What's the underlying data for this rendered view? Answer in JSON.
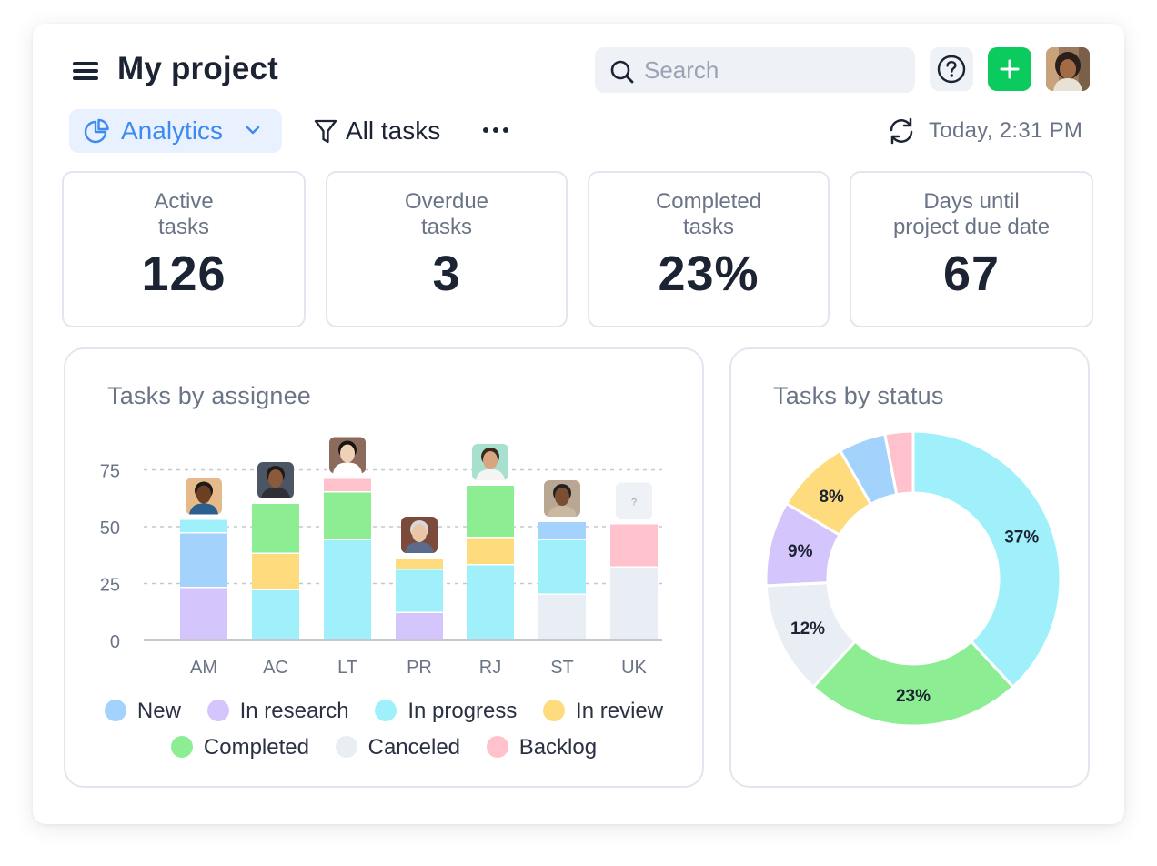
{
  "header": {
    "title": "My project",
    "search_placeholder": "Search",
    "help_icon": "question-circle-icon",
    "add_icon": "plus-icon"
  },
  "toolbar": {
    "view_label": "Analytics",
    "filter_label": "All tasks",
    "timestamp": "Today, 2:31 PM"
  },
  "stats": [
    {
      "label": "Active\ntasks",
      "value": "126"
    },
    {
      "label": "Overdue\ntasks",
      "value": "3"
    },
    {
      "label": "Completed\ntasks",
      "value": "23%"
    },
    {
      "label": "Days until\nproject due date",
      "value": "67"
    }
  ],
  "colors": {
    "New": "#a3d3fd",
    "In research": "#d4c5fd",
    "In progress": "#9ff0fb",
    "In review": "#fedb7c",
    "Completed": "#8ced92",
    "Canceled": "#e9edf4",
    "Backlog": "#ffc2cc",
    "accent": "#3d8bf2",
    "add_button": "#0bcb5e"
  },
  "legend": {
    "row1": [
      "New",
      "In research",
      "In progress",
      "In review"
    ],
    "row2": [
      "Completed",
      "Canceled",
      "Backlog"
    ]
  },
  "chart_data": [
    {
      "type": "bar",
      "stacked": true,
      "title": "Tasks by assignee",
      "categories": [
        "AM",
        "AC",
        "LT",
        "PR",
        "RJ",
        "ST",
        "UK"
      ],
      "yticks": [
        0,
        25,
        50,
        75
      ],
      "ylim": [
        0,
        85
      ],
      "grid": true,
      "legend_position": "bottom",
      "series": [
        {
          "name": "In research",
          "values": [
            23,
            0,
            0,
            12,
            0,
            0,
            0
          ]
        },
        {
          "name": "Canceled",
          "values": [
            0,
            0,
            0,
            0,
            0,
            20,
            32
          ]
        },
        {
          "name": "In progress",
          "values": [
            0,
            22,
            44,
            19,
            33,
            24,
            0
          ]
        },
        {
          "name": "In review",
          "values": [
            0,
            16,
            0,
            5,
            12,
            0,
            0
          ]
        },
        {
          "name": "Completed",
          "values": [
            0,
            22,
            21,
            0,
            23,
            0,
            0
          ]
        },
        {
          "name": "New",
          "values": [
            24,
            0,
            0,
            0,
            0,
            8,
            0
          ]
        },
        {
          "name": "In progress",
          "values": [
            6,
            0,
            0,
            0,
            0,
            0,
            0
          ]
        },
        {
          "name": "Backlog",
          "values": [
            0,
            0,
            6,
            0,
            0,
            0,
            19
          ]
        }
      ],
      "avatars": [
        "avatar-am",
        "avatar-ac",
        "avatar-lt",
        "avatar-pr",
        "avatar-rj",
        "avatar-st",
        "?"
      ]
    },
    {
      "type": "pie",
      "donut": true,
      "title": "Tasks by status",
      "slices": [
        {
          "name": "In progress",
          "value": 37,
          "label": "37%"
        },
        {
          "name": "Completed",
          "value": 23,
          "label": "23%"
        },
        {
          "name": "Canceled",
          "value": 12,
          "label": "12%"
        },
        {
          "name": "In research",
          "value": 9,
          "label": "9%"
        },
        {
          "name": "In review",
          "value": 8,
          "label": "8%"
        },
        {
          "name": "New",
          "value": 5,
          "label": ""
        },
        {
          "name": "Backlog",
          "value": 3,
          "label": ""
        }
      ]
    }
  ]
}
